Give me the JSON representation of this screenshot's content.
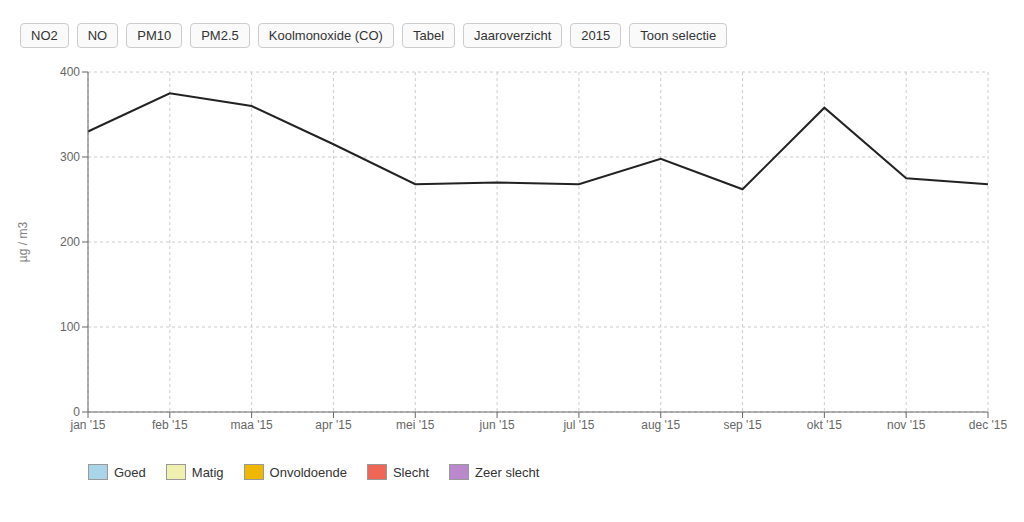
{
  "chart_data": {
    "type": "line",
    "categories": [
      "jan '15",
      "feb '15",
      "maa '15",
      "apr '15",
      "mei '15",
      "jun '15",
      "jul '15",
      "aug '15",
      "sep '15",
      "okt '15",
      "nov '15",
      "dec '15"
    ],
    "values": [
      330,
      375,
      360,
      315,
      268,
      270,
      268,
      298,
      262,
      358,
      275,
      268
    ],
    "color": "#222222",
    "ylabel": "µg / m3",
    "ylim": [
      0,
      400
    ],
    "yticks": [
      0,
      100,
      200,
      300,
      400
    ],
    "grid": true,
    "annotations": [
      "NO2",
      "NO",
      "PM10",
      "PM2.5",
      "Koolmonoxide (CO)",
      "Tabel",
      "Jaaroverzicht",
      "2015",
      "Toon selectie"
    ],
    "legend_items": [
      {
        "label": "Goed",
        "color": "#aad4ea"
      },
      {
        "label": "Matig",
        "color": "#f0f0b0"
      },
      {
        "label": "Onvoldoende",
        "color": "#f0b800"
      },
      {
        "label": "Slecht",
        "color": "#ee6655"
      },
      {
        "label": "Zeer slecht",
        "color": "#bb88cc"
      }
    ]
  }
}
